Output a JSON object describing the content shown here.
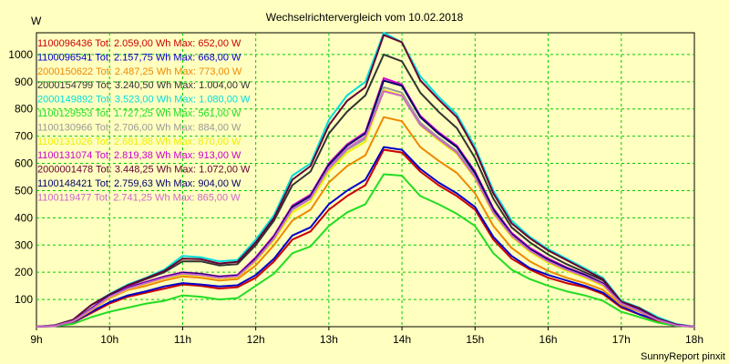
{
  "window": {
    "title": "Wechselrichtervergleich vom 10.02.2018",
    "unit": "W",
    "footer": "SunnyReport pinxit"
  },
  "chart_data": {
    "type": "line",
    "title": "Wechselrichtervergleich vom 10.02.2018",
    "ylabel": "W",
    "xlabel": "",
    "x_ticks": [
      "9h",
      "10h",
      "11h",
      "12h",
      "13h",
      "14h",
      "15h",
      "16h",
      "17h",
      "18h"
    ],
    "y_ticks": [
      100,
      200,
      300,
      400,
      500,
      600,
      700,
      800,
      900,
      1000
    ],
    "xlim": [
      9.0,
      18.0
    ],
    "ylim": [
      0,
      1080
    ],
    "grid": true,
    "legend_position": "top-left",
    "x": [
      9.0,
      9.25,
      9.5,
      9.75,
      10.0,
      10.25,
      10.5,
      10.75,
      11.0,
      11.25,
      11.5,
      11.75,
      12.0,
      12.25,
      12.5,
      12.75,
      13.0,
      13.25,
      13.5,
      13.75,
      14.0,
      14.25,
      14.5,
      14.75,
      15.0,
      15.25,
      15.5,
      15.75,
      16.0,
      16.25,
      16.5,
      16.75,
      17.0,
      17.25,
      17.5,
      17.75,
      18.0
    ],
    "series": [
      {
        "name": "1100096436",
        "legend": "1100096436 Tot: 2.059,00 Wh Max: 652,00 W",
        "color": "#cc0000",
        "values": [
          0,
          2,
          15,
          50,
          85,
          110,
          125,
          140,
          155,
          150,
          140,
          145,
          180,
          240,
          320,
          350,
          430,
          480,
          520,
          650,
          640,
          570,
          520,
          480,
          430,
          320,
          250,
          210,
          180,
          160,
          145,
          120,
          70,
          45,
          20,
          5,
          0
        ]
      },
      {
        "name": "1100096541",
        "legend": "1100096541 Tot: 2.157,75 Wh Max: 668,00 W",
        "color": "#0000cc",
        "values": [
          0,
          2,
          15,
          55,
          90,
          115,
          130,
          148,
          160,
          155,
          148,
          152,
          190,
          250,
          335,
          365,
          450,
          500,
          540,
          660,
          650,
          580,
          530,
          490,
          440,
          330,
          260,
          215,
          190,
          170,
          150,
          125,
          75,
          45,
          25,
          5,
          0
        ]
      },
      {
        "name": "2000150622",
        "legend": "2000150622 Tot: 2.487,25 Wh Max: 773,00 W",
        "color": "#ee8800",
        "values": [
          0,
          3,
          18,
          60,
          105,
          135,
          150,
          170,
          185,
          180,
          170,
          175,
          225,
          300,
          390,
          430,
          530,
          590,
          630,
          770,
          755,
          660,
          610,
          565,
          490,
          370,
          290,
          240,
          205,
          180,
          160,
          135,
          80,
          55,
          25,
          5,
          0
        ]
      },
      {
        "name": "2000154799",
        "legend": "2000154799 Tot: 3.240,50 Wh Max: 1.004,00 W",
        "color": "#333333",
        "values": [
          0,
          5,
          25,
          80,
          115,
          150,
          175,
          200,
          240,
          240,
          225,
          230,
          300,
          390,
          520,
          570,
          710,
          790,
          850,
          1000,
          975,
          860,
          790,
          730,
          620,
          470,
          365,
          310,
          265,
          230,
          200,
          170,
          90,
          65,
          25,
          5,
          0
        ]
      },
      {
        "name": "2000149892",
        "legend": "2000149892 Tot: 3.523,00 Wh Max: 1.080,00 W",
        "color": "#00dddd",
        "values": [
          0,
          5,
          25,
          80,
          120,
          155,
          180,
          210,
          260,
          255,
          240,
          245,
          320,
          410,
          555,
          600,
          760,
          850,
          900,
          1080,
          1045,
          920,
          845,
          780,
          660,
          500,
          390,
          330,
          285,
          250,
          215,
          180,
          95,
          70,
          35,
          10,
          0
        ]
      },
      {
        "name": "1100129553",
        "legend": "1100129553 Tot: 1.727,25 Wh Max: 561,00 W",
        "color": "#22dd22",
        "values": [
          0,
          2,
          10,
          35,
          55,
          70,
          85,
          95,
          115,
          110,
          100,
          105,
          150,
          195,
          270,
          295,
          370,
          420,
          450,
          560,
          555,
          480,
          450,
          415,
          370,
          270,
          210,
          175,
          150,
          130,
          115,
          95,
          55,
          35,
          15,
          3,
          0
        ]
      },
      {
        "name": "1100130966",
        "legend": "1100130966 Tot: 2.706,00 Wh Max: 884,00 W",
        "color": "#999999",
        "values": [
          0,
          3,
          20,
          65,
          110,
          140,
          160,
          180,
          195,
          190,
          180,
          185,
          245,
          325,
          430,
          470,
          580,
          650,
          690,
          880,
          860,
          750,
          695,
          645,
          555,
          420,
          335,
          280,
          240,
          210,
          185,
          155,
          85,
          60,
          25,
          5,
          0
        ]
      },
      {
        "name": "1100131026",
        "legend": "1100131026 Tot: 2.681,88 Wh Max: 870,00 W",
        "color": "#eeee00",
        "values": [
          0,
          3,
          20,
          62,
          108,
          138,
          158,
          178,
          192,
          188,
          178,
          182,
          240,
          318,
          420,
          460,
          570,
          640,
          680,
          870,
          850,
          740,
          685,
          635,
          545,
          415,
          330,
          275,
          235,
          205,
          180,
          150,
          85,
          58,
          25,
          5,
          0
        ]
      },
      {
        "name": "1100131074",
        "legend": "1100131074 Tot: 2.819,38 Wh Max: 913,00 W",
        "color": "#cc00cc",
        "values": [
          0,
          3,
          20,
          68,
          115,
          145,
          165,
          185,
          200,
          195,
          185,
          190,
          255,
          335,
          445,
          485,
          600,
          670,
          715,
          913,
          890,
          775,
          715,
          665,
          570,
          435,
          345,
          290,
          250,
          218,
          192,
          160,
          88,
          62,
          28,
          5,
          0
        ]
      },
      {
        "name": "2000001478",
        "legend": "2000001478 Tot: 3.448,25 Wh Max: 1.072,00 W",
        "color": "#660033",
        "values": [
          0,
          5,
          25,
          80,
          118,
          152,
          178,
          205,
          250,
          248,
          232,
          238,
          310,
          400,
          540,
          590,
          740,
          830,
          880,
          1072,
          1045,
          905,
          835,
          770,
          650,
          490,
          380,
          325,
          280,
          245,
          210,
          175,
          92,
          68,
          30,
          8,
          0
        ]
      },
      {
        "name": "1100148421",
        "legend": "1100148421 Tot: 2.759,63 Wh Max: 904,00 W",
        "color": "#000066",
        "values": [
          0,
          3,
          20,
          66,
          112,
          142,
          162,
          182,
          198,
          193,
          183,
          188,
          250,
          330,
          440,
          480,
          595,
          665,
          710,
          904,
          885,
          770,
          710,
          660,
          565,
          430,
          340,
          285,
          245,
          215,
          190,
          158,
          86,
          60,
          26,
          5,
          0
        ]
      },
      {
        "name": "1100119477",
        "legend": "1100119477 Tot: 2.741,25 Wh Max: 865,00 W",
        "color": "#cc66cc",
        "values": [
          0,
          3,
          20,
          64,
          110,
          140,
          160,
          180,
          195,
          190,
          180,
          185,
          245,
          325,
          432,
          472,
          585,
          655,
          698,
          865,
          848,
          742,
          690,
          640,
          550,
          420,
          335,
          280,
          240,
          210,
          185,
          155,
          85,
          58,
          25,
          5,
          0
        ]
      }
    ]
  }
}
